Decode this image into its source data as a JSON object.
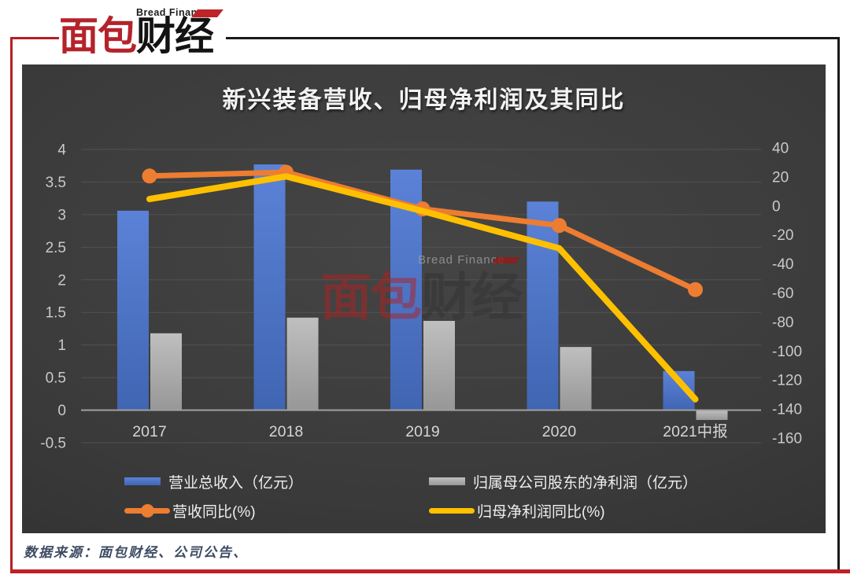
{
  "logo": {
    "small_text": "Bread Finance",
    "main_red": "面包",
    "main_black": "财经"
  },
  "watermark": {
    "small_text": "Bread Finance",
    "big_red": "面包",
    "big_dark": "财经"
  },
  "chart_data": {
    "type": "bar+line combo",
    "title": "新兴装备营收、归母净利润及其同比",
    "categories": [
      "2017",
      "2018",
      "2019",
      "2020",
      "2021中报"
    ],
    "series": [
      {
        "key": "revenue",
        "name": "营业总收入（亿元）",
        "type": "bar",
        "axis": "left",
        "color": "#4e73c6",
        "color_top": "#5b82d7",
        "color_bottom": "#4065b2",
        "values": [
          3.06,
          3.77,
          3.69,
          3.2,
          0.6
        ]
      },
      {
        "key": "net_profit",
        "name": "归属母公司股东的净利润（亿元）",
        "type": "bar",
        "axis": "left",
        "color": "#a8a8a8",
        "color_top": "#bfbfbf",
        "color_bottom": "#979797",
        "values": [
          1.18,
          1.42,
          1.37,
          0.97,
          -0.15
        ]
      },
      {
        "key": "revenue_yoy",
        "name": "营收同比(%)",
        "type": "line",
        "axis": "right",
        "color": "#ed7d31",
        "marker": "circle",
        "values": [
          20.6,
          23.2,
          -2.1,
          -13.5,
          -57.7
        ]
      },
      {
        "key": "net_profit_yoy",
        "name": "归母净利润同比(%)",
        "type": "line",
        "axis": "right",
        "color": "#ffc000",
        "marker": "none",
        "values": [
          4.7,
          20.3,
          -3.6,
          -29.2,
          -133.3
        ]
      }
    ],
    "left_axis": {
      "max": 4,
      "min": -0.5,
      "step": 0.5,
      "ticks": [
        "4",
        "3.5",
        "3",
        "2.5",
        "2",
        "1.5",
        "1",
        "0.5",
        "0",
        "-0.5"
      ]
    },
    "right_axis": {
      "max": 40,
      "min": -160,
      "step": 20,
      "ticks": [
        "40",
        "20",
        "0",
        "-20",
        "-40",
        "-60",
        "-80",
        "-100",
        "-120",
        "-140",
        "-160"
      ]
    },
    "grid": true,
    "legend_position": "bottom",
    "colors": {
      "panel_background": "#3a3a3a",
      "gridline": "#525252",
      "zero_line": "#a0a0a0",
      "axis_text": "#c9c9c9",
      "category_text": "#d6d6d6",
      "title_text": "#f2f2f2"
    }
  },
  "footer": {
    "source_text": "数据来源：面包财经、公司公告、"
  }
}
